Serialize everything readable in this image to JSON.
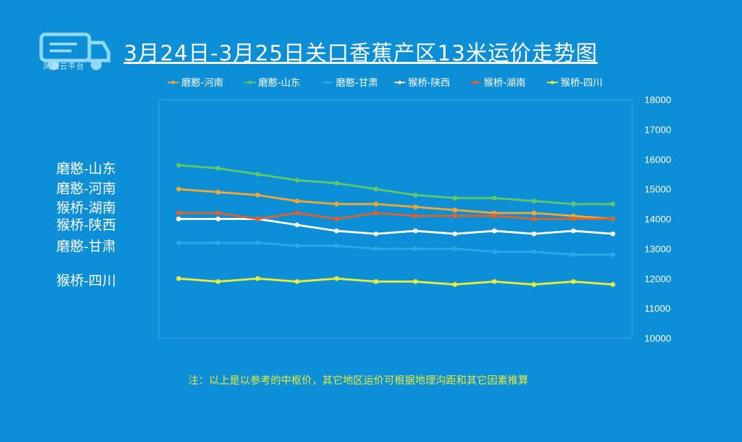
{
  "logo": {
    "text": "凤凰云平台"
  },
  "title": "3月24日-3月25日关口香蕉产区13米运价走势图",
  "left_labels": [
    "磨憨-山东",
    "磨憨-河南",
    "猴桥-湖南",
    "猴桥-陕西",
    "磨憨-甘肃",
    "猴桥-四川"
  ],
  "note": "注：以上是以参考的中枢价，其它地区运价可根据地理沟距和其它因素推算",
  "chart_data": {
    "type": "line",
    "title": "3月24日-3月25日关口香蕉产区13米运价走势图",
    "x": [
      1,
      2,
      3,
      4,
      5,
      6,
      7,
      8,
      9,
      10,
      11,
      12
    ],
    "ylim": [
      10000,
      18000
    ],
    "yticks": [
      10000,
      11000,
      12000,
      13000,
      14000,
      15000,
      16000,
      17000,
      18000
    ],
    "grid": false,
    "legend_position": "top",
    "y_axis_side": "right",
    "series": [
      {
        "name": "磨憨-河南",
        "color": "#f0a830",
        "values": [
          15000,
          14900,
          14800,
          14600,
          14500,
          14500,
          14400,
          14300,
          14200,
          14200,
          14100,
          14000
        ]
      },
      {
        "name": "磨憨-山东",
        "color": "#5fc76a",
        "values": [
          15800,
          15700,
          15500,
          15300,
          15200,
          15000,
          14800,
          14700,
          14700,
          14600,
          14500,
          14500
        ]
      },
      {
        "name": "磨憨-甘肃",
        "color": "#29a9e8",
        "values": [
          13200,
          13200,
          13200,
          13100,
          13100,
          13000,
          13000,
          13000,
          12900,
          12900,
          12800,
          12800
        ]
      },
      {
        "name": "猴桥-陕西",
        "color": "#ffffff",
        "values": [
          14000,
          14000,
          14000,
          13800,
          13600,
          13500,
          13600,
          13500,
          13600,
          13500,
          13600,
          13500
        ]
      },
      {
        "name": "猴桥-湖南",
        "color": "#e0612a",
        "values": [
          14200,
          14200,
          14000,
          14200,
          14000,
          14200,
          14100,
          14100,
          14100,
          14000,
          14000,
          14000
        ]
      },
      {
        "name": "猴桥-四川",
        "color": "#e8ec3a",
        "values": [
          12000,
          11900,
          12000,
          11900,
          12000,
          11900,
          11900,
          11800,
          11900,
          11800,
          11900,
          11800
        ]
      }
    ]
  }
}
